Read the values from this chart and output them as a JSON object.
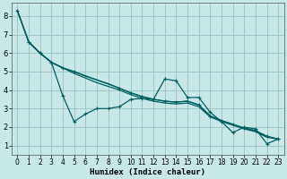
{
  "xlabel": "Humidex (Indice chaleur)",
  "bg_color": "#c8e8e8",
  "grid_color": "#a0c8c8",
  "line_color": "#006060",
  "xlim": [
    -0.5,
    23.5
  ],
  "ylim": [
    0.5,
    8.7
  ],
  "xticks": [
    0,
    1,
    2,
    3,
    4,
    5,
    6,
    7,
    8,
    9,
    10,
    11,
    12,
    13,
    14,
    15,
    16,
    17,
    18,
    19,
    20,
    21,
    22,
    23
  ],
  "yticks": [
    1,
    2,
    3,
    4,
    5,
    6,
    7,
    8
  ],
  "smooth1_x": [
    0,
    1,
    2,
    3,
    4,
    5,
    6,
    7,
    8,
    9,
    10,
    11,
    12,
    13,
    14,
    15,
    16,
    17,
    18,
    19,
    20,
    21,
    22,
    23
  ],
  "smooth1_y": [
    8.3,
    6.6,
    6.0,
    5.5,
    5.2,
    4.9,
    4.65,
    4.4,
    4.2,
    4.0,
    3.75,
    3.55,
    3.4,
    3.3,
    3.25,
    3.3,
    3.1,
    2.55,
    2.3,
    2.1,
    1.9,
    1.75,
    1.45,
    1.35
  ],
  "smooth2_x": [
    0,
    1,
    2,
    3,
    4,
    5,
    6,
    7,
    8,
    9,
    10,
    11,
    12,
    13,
    14,
    15,
    16,
    17,
    18,
    19,
    20,
    21,
    22,
    23
  ],
  "smooth2_y": [
    8.3,
    6.6,
    6.0,
    5.5,
    5.2,
    5.0,
    4.75,
    4.55,
    4.35,
    4.1,
    3.85,
    3.65,
    3.5,
    3.4,
    3.35,
    3.4,
    3.2,
    2.6,
    2.35,
    2.15,
    1.95,
    1.8,
    1.5,
    1.35
  ],
  "jagged1_x": [
    0,
    1,
    2,
    3,
    4,
    5,
    6,
    7,
    8,
    9,
    10,
    11,
    12,
    13,
    14,
    15,
    16,
    17,
    18,
    19,
    20,
    21,
    22,
    23
  ],
  "jagged1_y": [
    8.3,
    6.6,
    6.0,
    5.5,
    3.7,
    2.3,
    2.7,
    3.0,
    3.0,
    3.1,
    3.5,
    3.55,
    3.5,
    4.6,
    4.5,
    3.6,
    3.6,
    2.8,
    2.3,
    1.7,
    2.0,
    1.9,
    1.1,
    1.35
  ],
  "jagged2_x": [
    1,
    2,
    3,
    4,
    5,
    9,
    10,
    11,
    12,
    13,
    14,
    15,
    16,
    17,
    18,
    19,
    20,
    21,
    22,
    23
  ],
  "jagged2_y": [
    6.6,
    6.0,
    5.5,
    5.2,
    5.0,
    4.1,
    3.85,
    3.65,
    3.5,
    3.4,
    3.35,
    3.4,
    3.2,
    2.6,
    2.35,
    2.15,
    1.95,
    1.8,
    1.5,
    1.35
  ]
}
